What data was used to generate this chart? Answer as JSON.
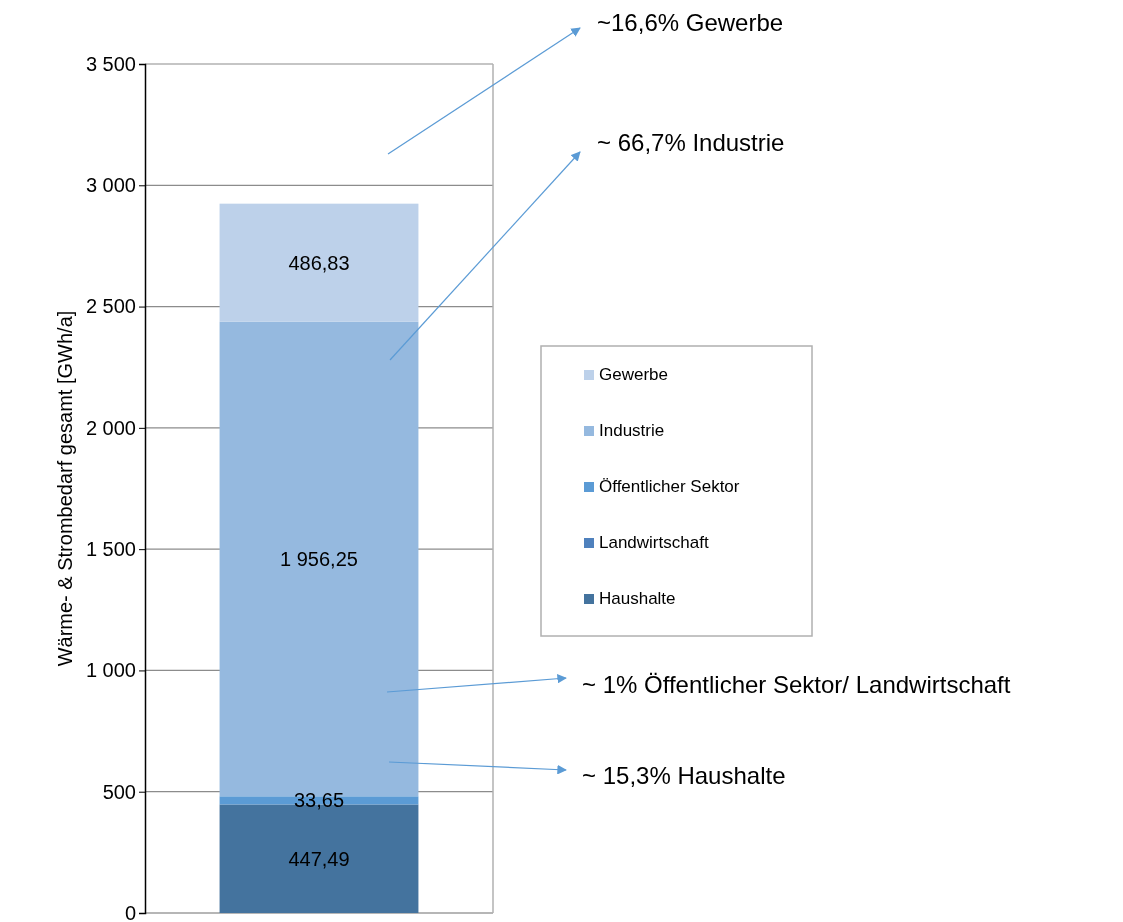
{
  "chart_data": {
    "type": "bar",
    "stacked": true,
    "ylabel": "Wärme- & Strombedarf gesamt [GWh/a]",
    "categories": [
      null
    ],
    "series": [
      {
        "name": "Haushalte",
        "color": "#44739e",
        "values": [
          447.49
        ],
        "value_labels": [
          "447,49"
        ]
      },
      {
        "name": "Landwirtschaft",
        "color": "#4f81bd",
        "values": [
          null
        ],
        "value_labels": [
          null
        ]
      },
      {
        "name": "Öffentlicher Sektor",
        "color": "#5b9bd5",
        "values": [
          33.65
        ],
        "value_labels": [
          "33,65"
        ]
      },
      {
        "name": "Industrie",
        "color": "#95b9df",
        "values": [
          1956.25
        ],
        "value_labels": [
          "1 956,25"
        ]
      },
      {
        "name": "Gewerbe",
        "color": "#bdd1ea",
        "values": [
          486.83
        ],
        "value_labels": [
          "486,83"
        ]
      }
    ],
    "ylim": [
      0,
      3500
    ],
    "yticks": [
      0,
      {
        "value": 500,
        "label": "500"
      },
      {
        "value": 1000,
        "label": "1 000"
      },
      {
        "value": 1500,
        "label": "1 500"
      },
      {
        "value": 2000,
        "label": "2 000"
      },
      {
        "value": 2500,
        "label": "2 500"
      },
      {
        "value": 3000,
        "label": "3 000"
      },
      {
        "value": 3500,
        "label": "3 500"
      }
    ],
    "grid": "y",
    "legend": "right",
    "annotations": [
      "~16,6% Gewerbe",
      "~ 66,7% Industrie",
      "~ 1% Öffentlicher Sektor/ Landwirtschaft",
      "~ 15,3% Haushalte"
    ]
  }
}
